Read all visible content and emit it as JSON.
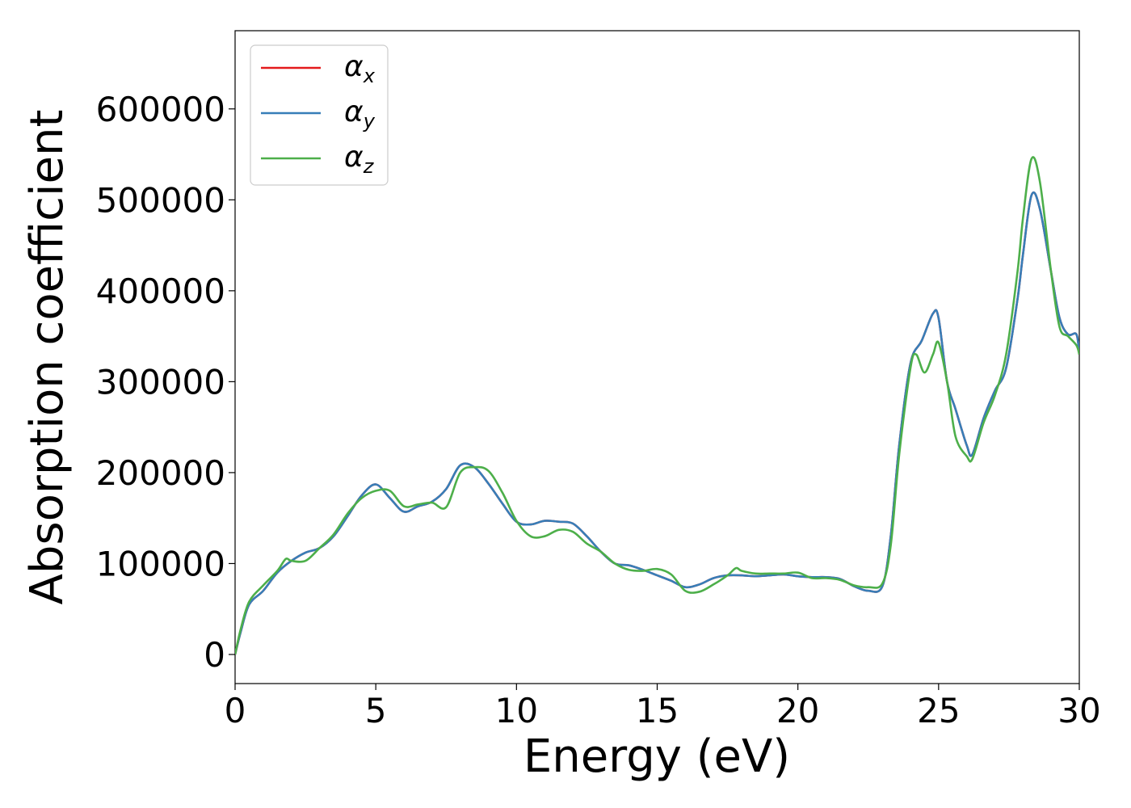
{
  "chart_data": {
    "type": "line",
    "xlabel": "Energy (eV)",
    "ylabel": "Absorption coefficient",
    "xlim": [
      0,
      30
    ],
    "ylim": [
      -32000,
      686000
    ],
    "xticks": [
      0,
      5,
      10,
      15,
      20,
      25,
      30
    ],
    "xtick_labels": [
      "0",
      "5",
      "10",
      "15",
      "20",
      "25",
      "30"
    ],
    "yticks": [
      0,
      100000,
      200000,
      300000,
      400000,
      500000,
      600000
    ],
    "ytick_labels": [
      "0",
      "100000",
      "200000",
      "300000",
      "400000",
      "500000",
      "600000"
    ],
    "grid": false,
    "legend_position": "top-left",
    "series": [
      {
        "name": "α",
        "subscript": "x",
        "color": "#e41a1c",
        "x": [
          0,
          0.2,
          0.5,
          1.0,
          1.5,
          2.0,
          2.5,
          3.0,
          3.5,
          4.0,
          4.5,
          5.0,
          5.5,
          6.0,
          6.5,
          7.0,
          7.5,
          8.0,
          8.5,
          9.0,
          9.5,
          10.0,
          10.5,
          11.0,
          11.5,
          12.0,
          12.5,
          13.0,
          13.5,
          14.0,
          14.5,
          15.0,
          15.5,
          16.0,
          16.5,
          17.0,
          17.5,
          18.0,
          18.5,
          19.0,
          19.5,
          20.0,
          20.5,
          21.0,
          21.5,
          22.0,
          22.5,
          23.0,
          23.3,
          23.6,
          24.0,
          24.4,
          24.8,
          25.0,
          25.3,
          25.6,
          26.0,
          26.2,
          26.6,
          27.0,
          27.4,
          27.8,
          28.0,
          28.3,
          28.6,
          29.0,
          29.3,
          29.6,
          29.9,
          30.0
        ],
        "y": [
          0,
          25000,
          55000,
          70000,
          90000,
          103000,
          112000,
          117000,
          130000,
          152000,
          175000,
          187000,
          172000,
          157000,
          163000,
          168000,
          182000,
          208000,
          206000,
          188000,
          166000,
          146000,
          143000,
          147000,
          146000,
          144000,
          130000,
          113000,
          100000,
          98000,
          93000,
          87000,
          81000,
          74000,
          77000,
          84000,
          87000,
          87000,
          86000,
          87000,
          88000,
          86000,
          85000,
          85000,
          83000,
          75000,
          70000,
          75000,
          130000,
          230000,
          320000,
          345000,
          375000,
          370000,
          300000,
          270000,
          230000,
          220000,
          260000,
          290000,
          315000,
          390000,
          440000,
          505000,
          490000,
          420000,
          370000,
          352000,
          352000,
          330000
        ]
      },
      {
        "name": "α",
        "subscript": "y",
        "color": "#377eb8",
        "x": [
          0,
          0.2,
          0.5,
          1.0,
          1.5,
          2.0,
          2.5,
          3.0,
          3.5,
          4.0,
          4.5,
          5.0,
          5.5,
          6.0,
          6.5,
          7.0,
          7.5,
          8.0,
          8.5,
          9.0,
          9.5,
          10.0,
          10.5,
          11.0,
          11.5,
          12.0,
          12.5,
          13.0,
          13.5,
          14.0,
          14.5,
          15.0,
          15.5,
          16.0,
          16.5,
          17.0,
          17.5,
          18.0,
          18.5,
          19.0,
          19.5,
          20.0,
          20.5,
          21.0,
          21.5,
          22.0,
          22.5,
          23.0,
          23.3,
          23.6,
          24.0,
          24.4,
          24.8,
          25.0,
          25.3,
          25.6,
          26.0,
          26.2,
          26.6,
          27.0,
          27.4,
          27.8,
          28.0,
          28.3,
          28.6,
          29.0,
          29.3,
          29.6,
          29.9,
          30.0
        ],
        "y": [
          0,
          25000,
          55000,
          70000,
          90000,
          103000,
          112000,
          117000,
          130000,
          152000,
          175000,
          187000,
          172000,
          157000,
          163000,
          168000,
          182000,
          208000,
          206000,
          188000,
          166000,
          146000,
          143000,
          147000,
          146000,
          144000,
          130000,
          113000,
          100000,
          98000,
          93000,
          87000,
          81000,
          74000,
          77000,
          84000,
          87000,
          87000,
          86000,
          87000,
          88000,
          86000,
          85000,
          85000,
          83000,
          75000,
          70000,
          75000,
          130000,
          230000,
          320000,
          345000,
          375000,
          370000,
          300000,
          270000,
          230000,
          220000,
          260000,
          290000,
          315000,
          390000,
          440000,
          505000,
          490000,
          420000,
          370000,
          352000,
          352000,
          330000
        ]
      },
      {
        "name": "α",
        "subscript": "z",
        "color": "#4daf4a",
        "x": [
          0,
          0.2,
          0.5,
          1.0,
          1.5,
          1.8,
          2.0,
          2.5,
          3.0,
          3.5,
          4.0,
          4.5,
          5.0,
          5.5,
          6.0,
          6.5,
          7.0,
          7.5,
          8.0,
          8.5,
          9.0,
          9.5,
          10.0,
          10.5,
          11.0,
          11.5,
          12.0,
          12.5,
          13.0,
          13.5,
          14.0,
          14.5,
          15.0,
          15.5,
          16.0,
          16.5,
          17.0,
          17.5,
          17.8,
          18.0,
          18.5,
          19.0,
          19.5,
          20.0,
          20.5,
          21.0,
          21.5,
          22.0,
          22.5,
          23.0,
          23.3,
          23.6,
          24.0,
          24.2,
          24.5,
          24.8,
          25.0,
          25.3,
          25.6,
          26.0,
          26.2,
          26.6,
          27.0,
          27.4,
          27.8,
          28.0,
          28.3,
          28.6,
          29.0,
          29.3,
          29.6,
          29.9,
          30.0
        ],
        "y": [
          0,
          28000,
          58000,
          76000,
          92000,
          105000,
          103000,
          103000,
          117000,
          132000,
          155000,
          172000,
          180000,
          180000,
          163000,
          165000,
          167000,
          162000,
          200000,
          206000,
          202000,
          178000,
          147000,
          130000,
          130000,
          137000,
          135000,
          122000,
          113000,
          100000,
          93000,
          92000,
          94000,
          88000,
          70000,
          69000,
          77000,
          87000,
          95000,
          92000,
          89000,
          89000,
          89000,
          90000,
          84000,
          84000,
          82000,
          76000,
          74000,
          78000,
          120000,
          220000,
          315000,
          330000,
          310000,
          330000,
          343000,
          300000,
          240000,
          218000,
          215000,
          255000,
          285000,
          330000,
          420000,
          480000,
          545000,
          520000,
          420000,
          360000,
          350000,
          340000,
          330000
        ]
      }
    ]
  }
}
